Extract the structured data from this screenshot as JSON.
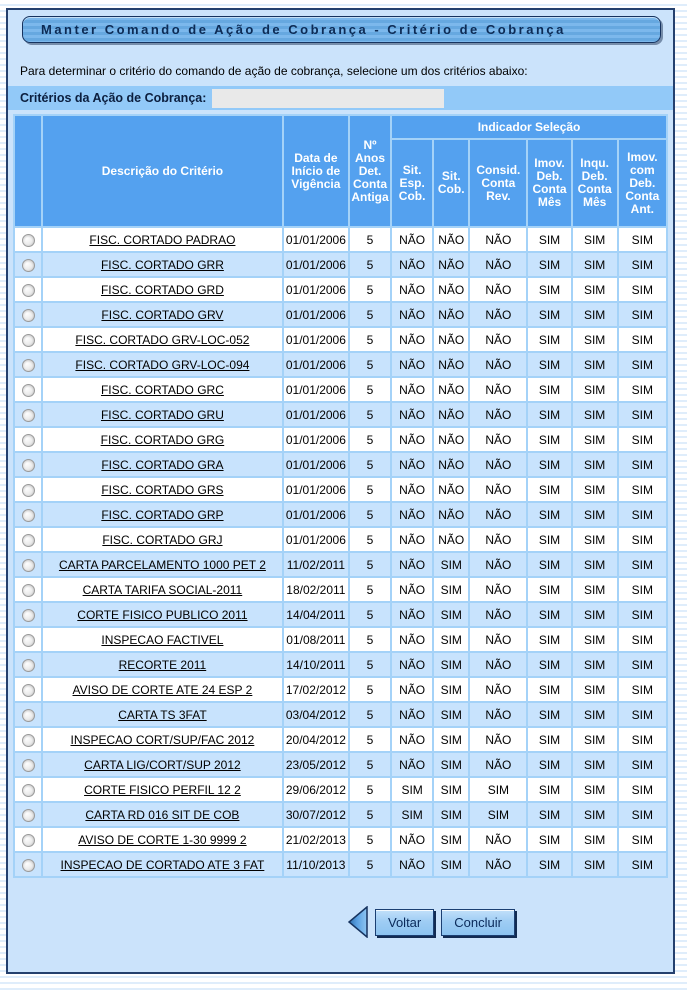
{
  "window": {
    "title": "Manter Comando de Ação de Cobrança - Critério de Cobrança"
  },
  "instruction": "Para determinar o critério do comando de ação de cobrança, selecione um dos critérios abaixo:",
  "criteria_field": {
    "label": "Critérios da Ação de Cobrança:",
    "value": ""
  },
  "table": {
    "group_header": "Indicador Seleção",
    "columns": {
      "descricao": "Descrição do Critério",
      "data_inicio": "Data de\nInício de\nVigência",
      "anos": "Nº\nAnos\nDet.\nConta\nAntiga",
      "indicators": [
        "Sit.\nEsp.\nCob.",
        "Sit.\nCob.",
        "Consid.\nConta\nRev.",
        "Imov.\nDeb.\nConta\nMês",
        "Inqu.\nDeb.\nConta\nMês",
        "Imov.\ncom\nDeb.\nConta\nAnt."
      ]
    },
    "rows": [
      {
        "descricao": "FISC. CORTADO PADRAO",
        "data": "01/01/2006",
        "anos": "5",
        "ind": [
          "NÃO",
          "NÃO",
          "NÃO",
          "SIM",
          "SIM",
          "SIM"
        ]
      },
      {
        "descricao": "FISC. CORTADO GRR",
        "data": "01/01/2006",
        "anos": "5",
        "ind": [
          "NÃO",
          "NÃO",
          "NÃO",
          "SIM",
          "SIM",
          "SIM"
        ]
      },
      {
        "descricao": "FISC. CORTADO GRD",
        "data": "01/01/2006",
        "anos": "5",
        "ind": [
          "NÃO",
          "NÃO",
          "NÃO",
          "SIM",
          "SIM",
          "SIM"
        ]
      },
      {
        "descricao": "FISC. CORTADO GRV",
        "data": "01/01/2006",
        "anos": "5",
        "ind": [
          "NÃO",
          "NÃO",
          "NÃO",
          "SIM",
          "SIM",
          "SIM"
        ]
      },
      {
        "descricao": "FISC. CORTADO GRV-LOC-052",
        "data": "01/01/2006",
        "anos": "5",
        "ind": [
          "NÃO",
          "NÃO",
          "NÃO",
          "SIM",
          "SIM",
          "SIM"
        ]
      },
      {
        "descricao": "FISC. CORTADO GRV-LOC-094",
        "data": "01/01/2006",
        "anos": "5",
        "ind": [
          "NÃO",
          "NÃO",
          "NÃO",
          "SIM",
          "SIM",
          "SIM"
        ]
      },
      {
        "descricao": "FISC. CORTADO GRC",
        "data": "01/01/2006",
        "anos": "5",
        "ind": [
          "NÃO",
          "NÃO",
          "NÃO",
          "SIM",
          "SIM",
          "SIM"
        ]
      },
      {
        "descricao": "FISC. CORTADO GRU",
        "data": "01/01/2006",
        "anos": "5",
        "ind": [
          "NÃO",
          "NÃO",
          "NÃO",
          "SIM",
          "SIM",
          "SIM"
        ]
      },
      {
        "descricao": "FISC. CORTADO GRG",
        "data": "01/01/2006",
        "anos": "5",
        "ind": [
          "NÃO",
          "NÃO",
          "NÃO",
          "SIM",
          "SIM",
          "SIM"
        ]
      },
      {
        "descricao": "FISC. CORTADO GRA",
        "data": "01/01/2006",
        "anos": "5",
        "ind": [
          "NÃO",
          "NÃO",
          "NÃO",
          "SIM",
          "SIM",
          "SIM"
        ]
      },
      {
        "descricao": "FISC. CORTADO GRS",
        "data": "01/01/2006",
        "anos": "5",
        "ind": [
          "NÃO",
          "NÃO",
          "NÃO",
          "SIM",
          "SIM",
          "SIM"
        ]
      },
      {
        "descricao": "FISC. CORTADO GRP",
        "data": "01/01/2006",
        "anos": "5",
        "ind": [
          "NÃO",
          "NÃO",
          "NÃO",
          "SIM",
          "SIM",
          "SIM"
        ]
      },
      {
        "descricao": "FISC. CORTADO GRJ",
        "data": "01/01/2006",
        "anos": "5",
        "ind": [
          "NÃO",
          "NÃO",
          "NÃO",
          "SIM",
          "SIM",
          "SIM"
        ]
      },
      {
        "descricao": "CARTA PARCELAMENTO 1000 PET 2",
        "data": "11/02/2011",
        "anos": "5",
        "ind": [
          "NÃO",
          "SIM",
          "NÃO",
          "SIM",
          "SIM",
          "SIM"
        ]
      },
      {
        "descricao": "CARTA TARIFA SOCIAL-2011",
        "data": "18/02/2011",
        "anos": "5",
        "ind": [
          "NÃO",
          "SIM",
          "NÃO",
          "SIM",
          "SIM",
          "SIM"
        ]
      },
      {
        "descricao": "CORTE FISICO PUBLICO 2011",
        "data": "14/04/2011",
        "anos": "5",
        "ind": [
          "NÃO",
          "SIM",
          "NÃO",
          "SIM",
          "SIM",
          "SIM"
        ]
      },
      {
        "descricao": "INSPECAO FACTIVEL",
        "data": "01/08/2011",
        "anos": "5",
        "ind": [
          "NÃO",
          "SIM",
          "NÃO",
          "SIM",
          "SIM",
          "SIM"
        ]
      },
      {
        "descricao": "RECORTE 2011",
        "data": "14/10/2011",
        "anos": "5",
        "ind": [
          "NÃO",
          "SIM",
          "NÃO",
          "SIM",
          "SIM",
          "SIM"
        ]
      },
      {
        "descricao": "AVISO DE CORTE ATE 24 ESP 2",
        "data": "17/02/2012",
        "anos": "5",
        "ind": [
          "NÃO",
          "SIM",
          "NÃO",
          "SIM",
          "SIM",
          "SIM"
        ]
      },
      {
        "descricao": "CARTA TS 3FAT",
        "data": "03/04/2012",
        "anos": "5",
        "ind": [
          "NÃO",
          "SIM",
          "NÃO",
          "SIM",
          "SIM",
          "SIM"
        ]
      },
      {
        "descricao": "INSPECAO CORT/SUP/FAC 2012",
        "data": "20/04/2012",
        "anos": "5",
        "ind": [
          "NÃO",
          "SIM",
          "NÃO",
          "SIM",
          "SIM",
          "SIM"
        ]
      },
      {
        "descricao": "CARTA LIG/CORT/SUP 2012",
        "data": "23/05/2012",
        "anos": "5",
        "ind": [
          "NÃO",
          "SIM",
          "NÃO",
          "SIM",
          "SIM",
          "SIM"
        ]
      },
      {
        "descricao": "CORTE FISICO PERFIL 12 2",
        "data": "29/06/2012",
        "anos": "5",
        "ind": [
          "SIM",
          "SIM",
          "SIM",
          "SIM",
          "SIM",
          "SIM"
        ]
      },
      {
        "descricao": "CARTA RD 016 SIT DE COB",
        "data": "30/07/2012",
        "anos": "5",
        "ind": [
          "SIM",
          "SIM",
          "SIM",
          "SIM",
          "SIM",
          "SIM"
        ]
      },
      {
        "descricao": "AVISO DE CORTE 1-30 9999 2",
        "data": "21/02/2013",
        "anos": "5",
        "ind": [
          "NÃO",
          "SIM",
          "NÃO",
          "SIM",
          "SIM",
          "SIM"
        ]
      },
      {
        "descricao": "INSPECAO DE CORTADO ATE 3 FAT",
        "data": "11/10/2013",
        "anos": "5",
        "ind": [
          "NÃO",
          "SIM",
          "NÃO",
          "SIM",
          "SIM",
          "SIM"
        ]
      }
    ]
  },
  "actions": {
    "back": "Voltar",
    "finish": "Concluir"
  },
  "colors": {
    "header_blue": "#54a1ef",
    "band_blue": "#92c9f8",
    "panel_blue": "#cbe3fb",
    "row_alt_blue": "#c8e3fd",
    "grid_border": "#a4d2f8",
    "frame_navy": "#24406e",
    "title_navy": "#0d2b55"
  }
}
